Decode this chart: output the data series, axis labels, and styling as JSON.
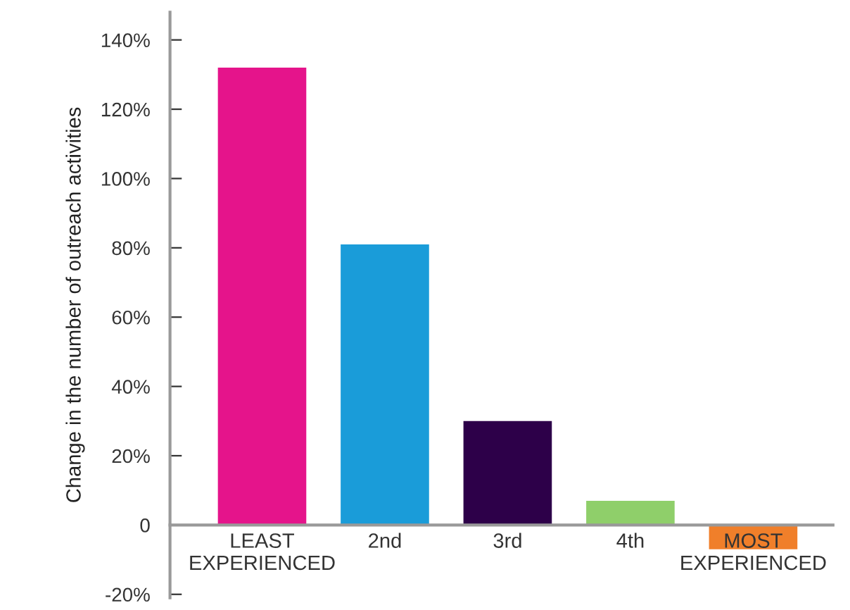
{
  "chart_data": {
    "type": "bar",
    "ylabel": "Change in the number of outreach activities",
    "categories": [
      "LEAST\nEXPERIENCED",
      "2nd",
      "3rd",
      "4th",
      "MOST\nEXPERIENCED"
    ],
    "values": [
      132,
      81,
      30,
      7,
      -7
    ],
    "colors": [
      "#e5148b",
      "#1a9cd9",
      "#2d0049",
      "#8fcf6a",
      "#f07f2a"
    ],
    "ylim": [
      -21,
      148
    ],
    "yticks": [
      {
        "value": -20,
        "label": "-20%"
      },
      0,
      {
        "value": 20,
        "label": "20%"
      },
      {
        "value": 40,
        "label": "40%"
      },
      {
        "value": 60,
        "label": "60%"
      },
      {
        "value": 80,
        "label": "80%"
      },
      {
        "value": 100,
        "label": "100%"
      },
      {
        "value": 120,
        "label": "120%"
      },
      {
        "value": 140,
        "label": "140%"
      }
    ],
    "grid": false,
    "legend": false
  }
}
